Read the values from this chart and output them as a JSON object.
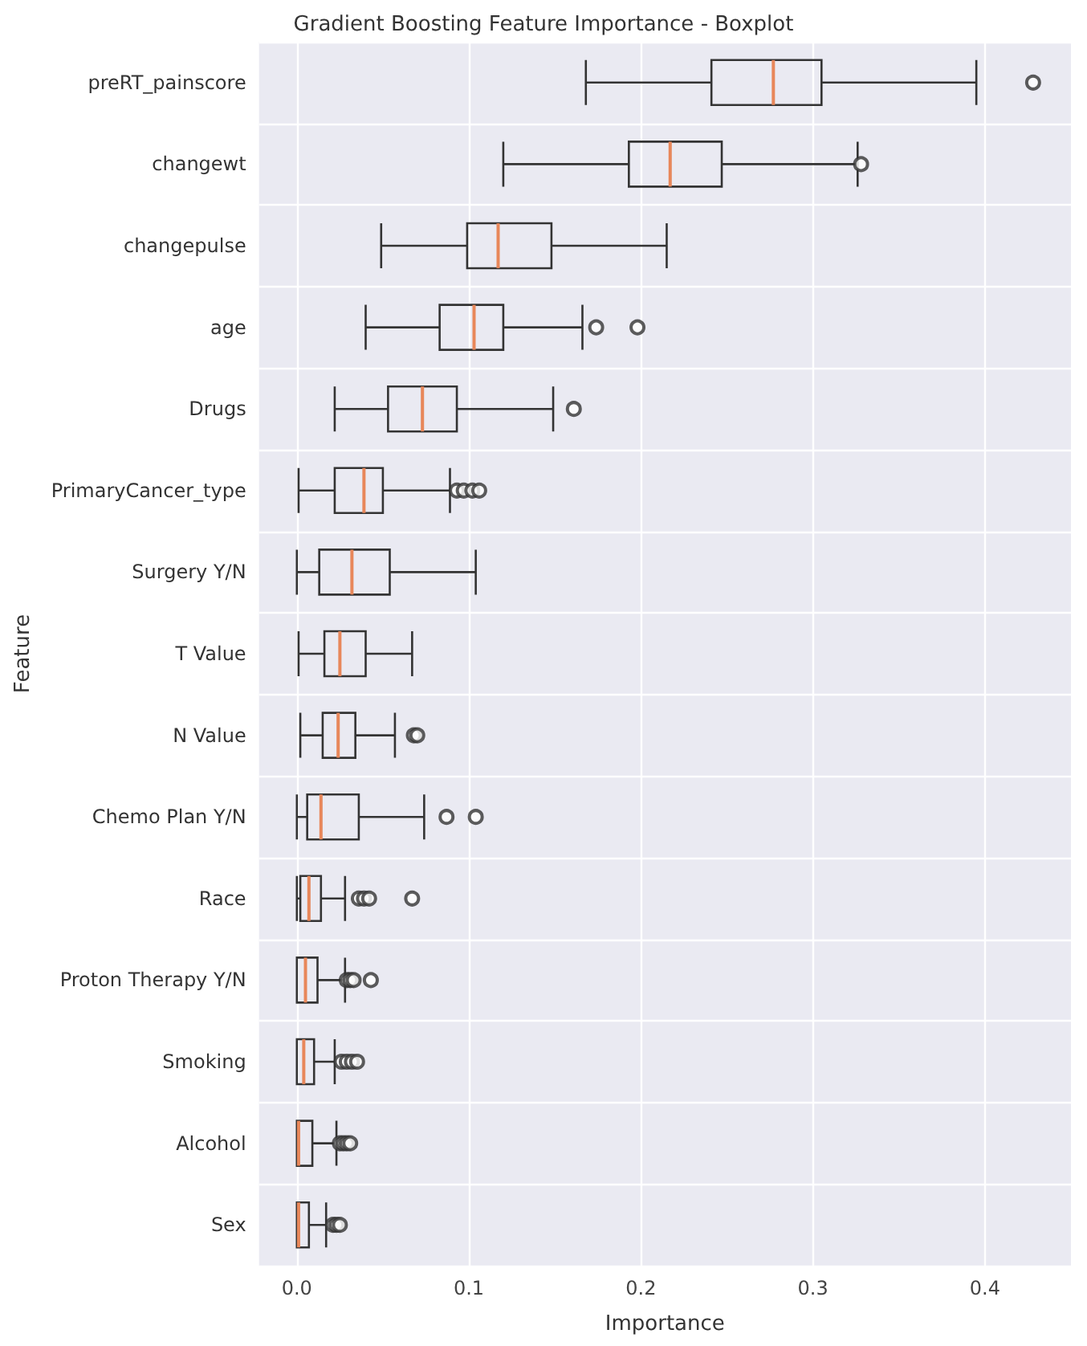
{
  "chart_data": {
    "type": "box",
    "title": "Gradient Boosting Feature Importance - Boxplot",
    "xlabel": "Importance",
    "ylabel": "Feature",
    "orientation": "horizontal",
    "categories": [
      "preRT_painscore",
      "changewt",
      "changepulse",
      "age",
      "Drugs",
      "PrimaryCancer_type",
      "Surgery Y/N",
      "T Value",
      "N Value",
      "Chemo Plan Y/N",
      "Race",
      "Proton Therapy Y/N",
      "Smoking",
      "Alcohol",
      "Sex"
    ],
    "boxes": [
      {
        "low": 0.168,
        "q1": 0.241,
        "median": 0.277,
        "q3": 0.305,
        "high": 0.395,
        "outliers": [
          0.428
        ]
      },
      {
        "low": 0.12,
        "q1": 0.193,
        "median": 0.217,
        "q3": 0.247,
        "high": 0.326,
        "outliers": [
          0.328
        ]
      },
      {
        "low": 0.049,
        "q1": 0.099,
        "median": 0.117,
        "q3": 0.148,
        "high": 0.215
      },
      {
        "low": 0.04,
        "q1": 0.083,
        "median": 0.103,
        "q3": 0.12,
        "high": 0.166,
        "outliers": [
          0.174,
          0.198
        ]
      },
      {
        "low": 0.022,
        "q1": 0.053,
        "median": 0.073,
        "q3": 0.093,
        "high": 0.149,
        "outliers": [
          0.161
        ]
      },
      {
        "low": 0.001,
        "q1": 0.022,
        "median": 0.039,
        "q3": 0.05,
        "high": 0.089,
        "outliers": [
          0.093,
          0.097,
          0.102,
          0.106
        ]
      },
      {
        "low": 0.0,
        "q1": 0.013,
        "median": 0.032,
        "q3": 0.054,
        "high": 0.104
      },
      {
        "low": 0.001,
        "q1": 0.016,
        "median": 0.025,
        "q3": 0.04,
        "high": 0.067
      },
      {
        "low": 0.002,
        "q1": 0.015,
        "median": 0.024,
        "q3": 0.034,
        "high": 0.057,
        "outliers": [
          0.068,
          0.07
        ]
      },
      {
        "low": 0.0,
        "q1": 0.006,
        "median": 0.014,
        "q3": 0.036,
        "high": 0.074,
        "outliers": [
          0.087,
          0.104
        ]
      },
      {
        "low": 0.0,
        "q1": 0.002,
        "median": 0.007,
        "q3": 0.014,
        "high": 0.028,
        "outliers": [
          0.036,
          0.039,
          0.042,
          0.067
        ]
      },
      {
        "low": 0.0,
        "q1": 0.0,
        "median": 0.005,
        "q3": 0.012,
        "high": 0.028,
        "outliers": [
          0.029,
          0.031,
          0.033,
          0.043
        ]
      },
      {
        "low": 0.0,
        "q1": 0.0,
        "median": 0.004,
        "q3": 0.01,
        "high": 0.022,
        "outliers": [
          0.026,
          0.029,
          0.032,
          0.035
        ]
      },
      {
        "low": 0.0,
        "q1": 0.0,
        "median": 0.001,
        "q3": 0.009,
        "high": 0.023,
        "outliers": [
          0.025,
          0.027,
          0.029,
          0.031
        ]
      },
      {
        "low": 0.0,
        "q1": 0.0,
        "median": 0.001,
        "q3": 0.007,
        "high": 0.017,
        "outliers": [
          0.021,
          0.023,
          0.025
        ]
      }
    ],
    "color": "#333333",
    "xlim": [
      -0.022,
      0.45
    ],
    "xticks": [
      {
        "value": 0,
        "label": "0.0"
      },
      {
        "value": 0.1,
        "label": "0.1"
      },
      {
        "value": 0.2,
        "label": "0.2"
      },
      {
        "value": 0.3,
        "label": "0.3"
      },
      {
        "value": 0.4,
        "label": "0.4"
      }
    ],
    "grid": true
  }
}
